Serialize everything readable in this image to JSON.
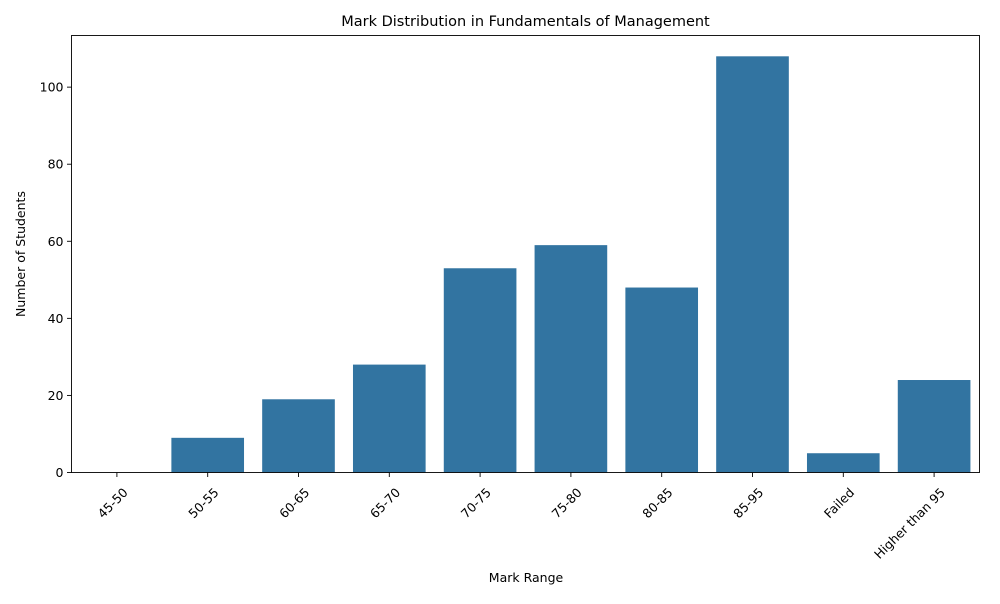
{
  "colors": {
    "bar": "#3274a1",
    "axis": "#000000",
    "background": "#ffffff"
  },
  "chart_data": {
    "type": "bar",
    "title": "Mark Distribution in Fundamentals of Management",
    "xlabel": "Mark Range",
    "ylabel": "Number of Students",
    "categories": [
      "45-50",
      "50-55",
      "60-65",
      "65-70",
      "70-75",
      "75-80",
      "80-85",
      "85-95",
      "Failed",
      "Higher than 95"
    ],
    "values": [
      0,
      9,
      19,
      28,
      53,
      59,
      48,
      108,
      5,
      24
    ],
    "ylim": [
      0,
      113.4
    ],
    "yticks": [
      0,
      20,
      40,
      60,
      80,
      100
    ],
    "grid": false,
    "legend": "none",
    "xtick_rotation": "45 degrees"
  }
}
